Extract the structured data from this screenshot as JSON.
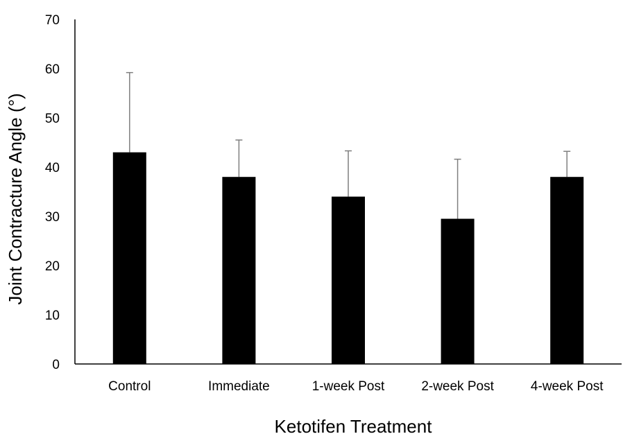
{
  "chart_data": {
    "type": "bar",
    "title": "",
    "xlabel": "Ketotifen Treatment",
    "ylabel": "Joint Contracture Angle (°)",
    "categories": [
      "Control",
      "Immediate",
      "1-week Post",
      "2-week Post",
      "4-week Post"
    ],
    "values": [
      43,
      38,
      34,
      29.5,
      38
    ],
    "error_upper": [
      16.2,
      7.5,
      9.3,
      12.1,
      5.2
    ],
    "ylim": [
      0,
      70
    ],
    "yticks": [
      0,
      10,
      20,
      30,
      40,
      50,
      60,
      70
    ],
    "grid": false,
    "legend": "none",
    "bar_color": "#000000",
    "error_bar_color": "#7f7f7f",
    "axis_color": "#000000"
  }
}
